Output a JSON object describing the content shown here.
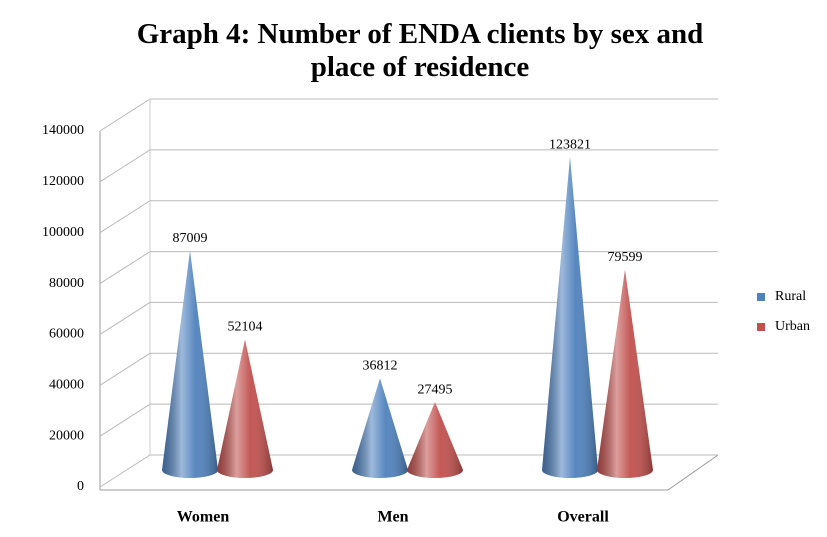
{
  "chart_data": {
    "type": "cone3d",
    "title": "Graph 4: Number of ENDA clients by sex and place of residence",
    "categories": [
      "Women",
      "Men",
      "Overall"
    ],
    "series": [
      {
        "name": "Rural",
        "color": "#4f81bd",
        "values": [
          87009,
          36812,
          123821
        ]
      },
      {
        "name": "Urban",
        "color": "#c0504d",
        "values": [
          52104,
          27495,
          79599
        ]
      }
    ],
    "ylim": [
      0,
      140000
    ],
    "yticks": [
      0,
      20000,
      40000,
      60000,
      80000,
      100000,
      120000,
      140000
    ],
    "grid": true,
    "legend": "right"
  }
}
